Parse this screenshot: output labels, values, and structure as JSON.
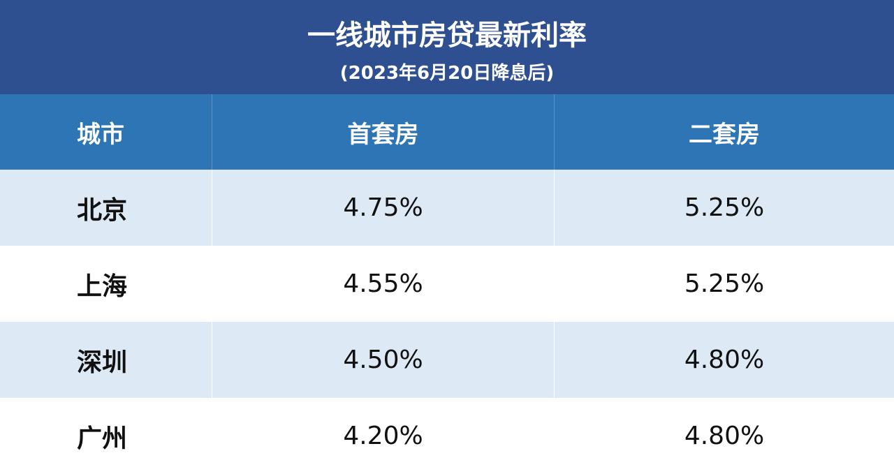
{
  "header": {
    "title": "一线城市房贷最新利率",
    "subtitle": "(2023年6月20日降息后)"
  },
  "table": {
    "columns": [
      "城市",
      "首套房",
      "二套房"
    ],
    "rows": [
      [
        "北京",
        "4.75%",
        "5.25%"
      ],
      [
        "上海",
        "4.55%",
        "5.25%"
      ],
      [
        "深圳",
        "4.50%",
        "4.80%"
      ],
      [
        "广州",
        "4.20%",
        "4.80%"
      ]
    ]
  }
}
